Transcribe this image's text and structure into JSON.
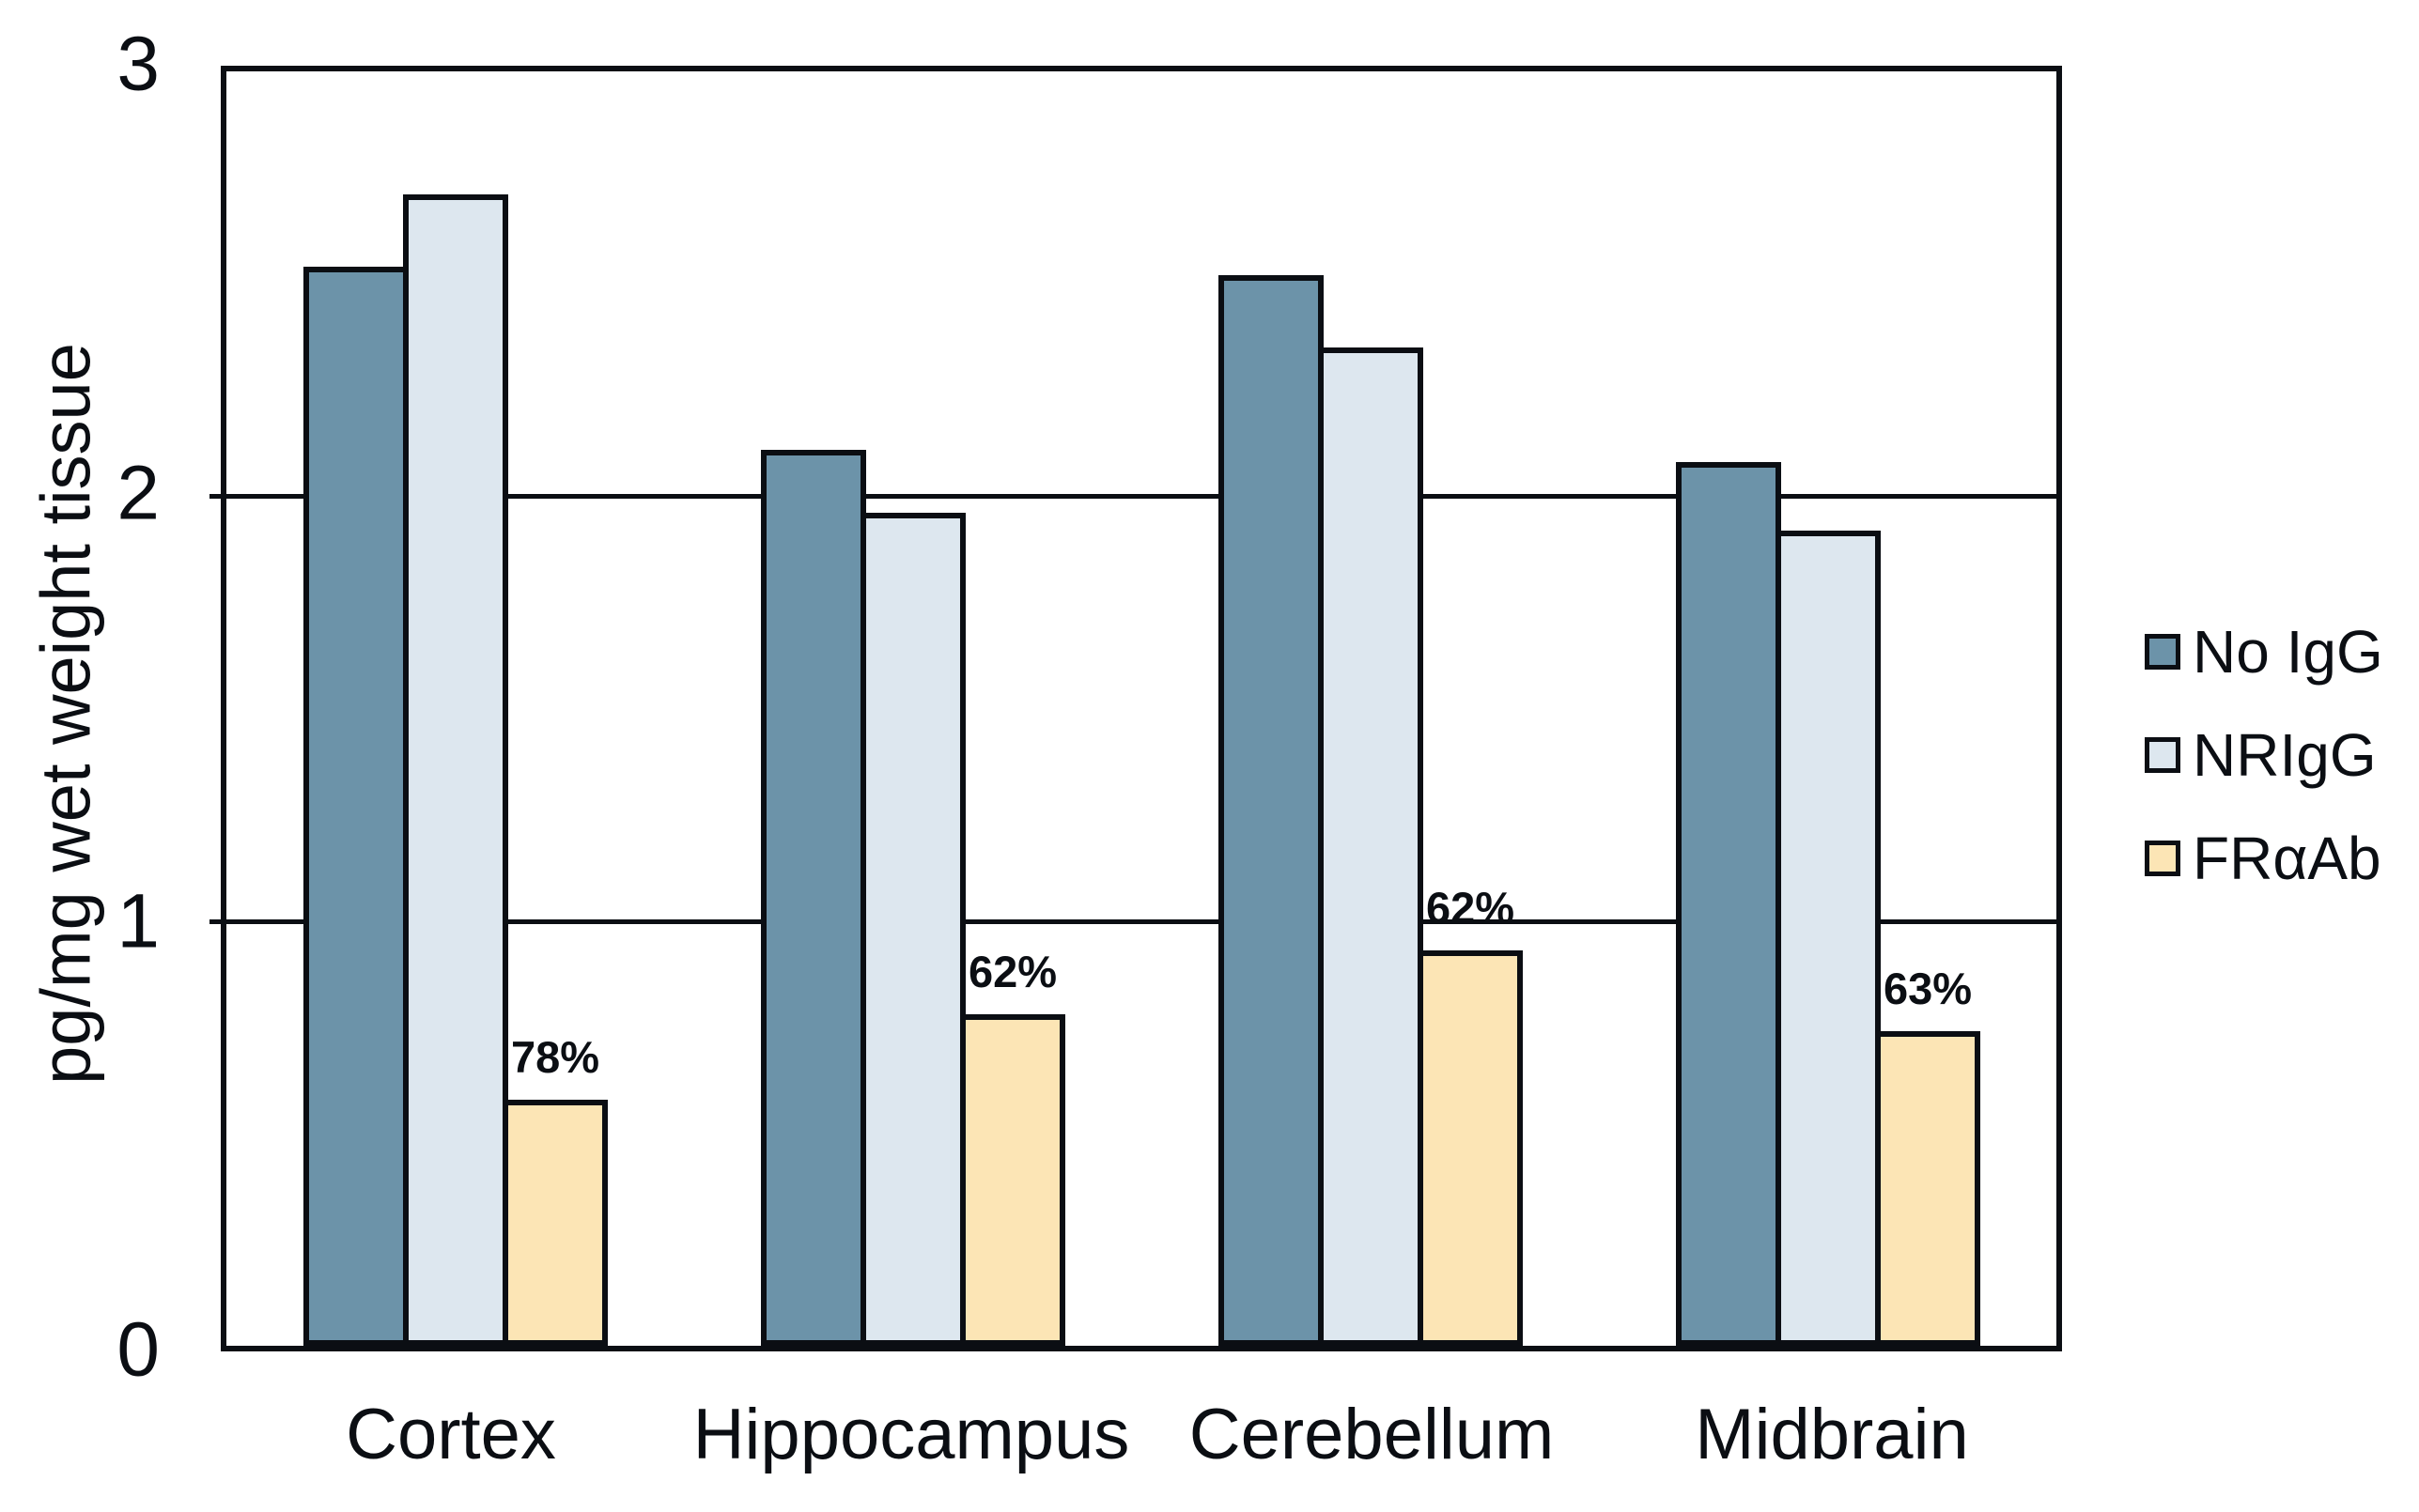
{
  "figure": {
    "ytick_labels": [
      "3",
      "2",
      "1",
      "0"
    ]
  },
  "chart_data": {
    "type": "bar",
    "title": "",
    "xlabel": "",
    "ylabel": "pg/mg wet weight tissue",
    "ylim": [
      0,
      3
    ],
    "yticks": [
      0,
      1,
      2,
      3
    ],
    "gridline_values": [
      1,
      2
    ],
    "grid": true,
    "legend_position": "right",
    "categories": [
      "Cortex",
      "Hippocampus",
      "Cerebellum",
      "Midbrain"
    ],
    "series": [
      {
        "name": "No IgG",
        "color": "#6C93A9",
        "values": [
          2.54,
          2.11,
          2.52,
          2.08
        ]
      },
      {
        "name": "NRIgG",
        "color": "#DDE7EF",
        "values": [
          2.71,
          1.96,
          2.35,
          1.92
        ]
      },
      {
        "name": "FRαAb",
        "color": "#FCE5B5",
        "values": [
          0.58,
          0.78,
          0.93,
          0.74
        ],
        "bar_labels": [
          "78%",
          "62%",
          "62%",
          "63%"
        ]
      }
    ],
    "colors": {
      "stroke": "#0b0e13",
      "background": "#ffffff"
    }
  }
}
